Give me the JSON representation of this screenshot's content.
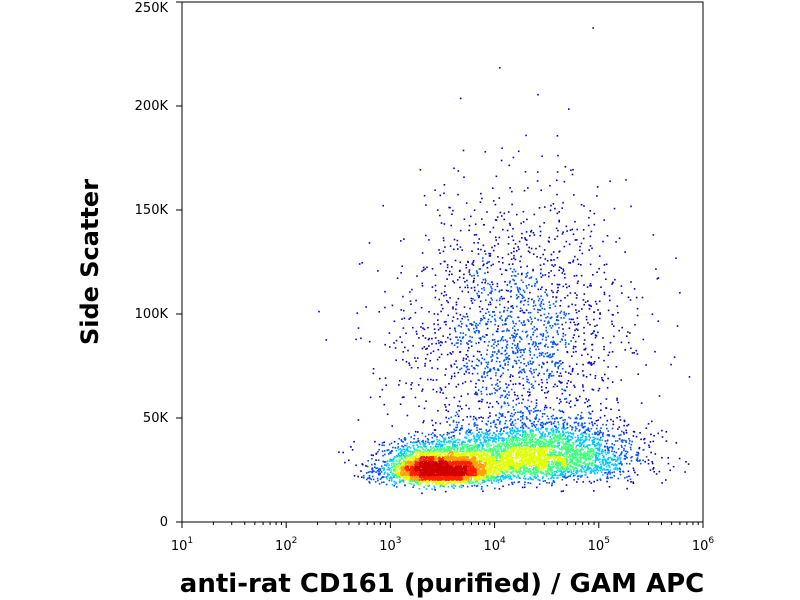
{
  "chart_data": {
    "type": "scatter",
    "title": "",
    "xlabel": "anti-rat CD161 (purified) / GAM APC",
    "ylabel": "Side Scatter",
    "x_scale": "log",
    "xlim": [
      10,
      1000000
    ],
    "ylim": [
      0,
      250000
    ],
    "x_ticks": [
      {
        "base": "10",
        "exp": "1",
        "value": 10
      },
      {
        "base": "10",
        "exp": "2",
        "value": 100
      },
      {
        "base": "10",
        "exp": "3",
        "value": 1000
      },
      {
        "base": "10",
        "exp": "4",
        "value": 10000
      },
      {
        "base": "10",
        "exp": "5",
        "value": 100000
      },
      {
        "base": "10",
        "exp": "6",
        "value": 1000000
      }
    ],
    "y_ticks": [
      {
        "label": "0",
        "value": 0
      },
      {
        "label": "50K",
        "value": 50000
      },
      {
        "label": "100K",
        "value": 100000
      },
      {
        "label": "150K",
        "value": 150000
      },
      {
        "label": "200K",
        "value": 200000
      },
      {
        "label": "250K",
        "value": 250000
      }
    ],
    "grid": false,
    "density_colors": [
      "#0000c8",
      "#0050ff",
      "#00c8ff",
      "#40ff80",
      "#e0ff00",
      "#ffa000",
      "#ff2000",
      "#d00000"
    ],
    "populations": [
      {
        "name": "",
        "x_center": 3000,
        "y_center": 23000,
        "x_spread_decades": 0.28,
        "y_spread": 7000,
        "weight": 0.42
      },
      {
        "name": "",
        "x_center": 25000,
        "y_center": 28000,
        "x_spread_decades": 0.45,
        "y_spread": 11000,
        "weight": 0.38
      },
      {
        "name": "",
        "x_center": 15000,
        "y_center": 75000,
        "x_spread_decades": 0.55,
        "y_spread": 40000,
        "weight": 0.2
      }
    ]
  }
}
